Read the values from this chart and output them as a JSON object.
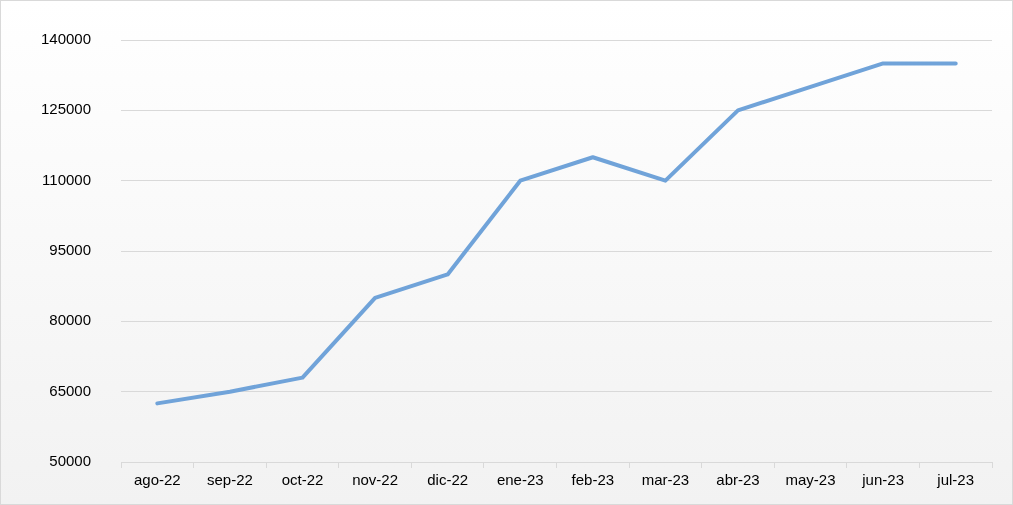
{
  "chart_data": {
    "type": "line",
    "categories": [
      "ago-22",
      "sep-22",
      "oct-22",
      "nov-22",
      "dic-22",
      "ene-23",
      "feb-23",
      "mar-23",
      "abr-23",
      "may-23",
      "jun-23",
      "jul-23"
    ],
    "series": [
      {
        "color": "#70a3d9",
        "values": [
          62500,
          65000,
          68000,
          85000,
          90000,
          110000,
          115000,
          110000,
          125000,
          130000,
          135000,
          135000
        ]
      }
    ],
    "ylim": [
      50000,
      140000
    ],
    "yticks": [
      50000,
      65000,
      80000,
      95000,
      110000,
      125000,
      140000
    ],
    "grid": "y",
    "legend": false,
    "marker": "none",
    "line_style": "solid"
  }
}
